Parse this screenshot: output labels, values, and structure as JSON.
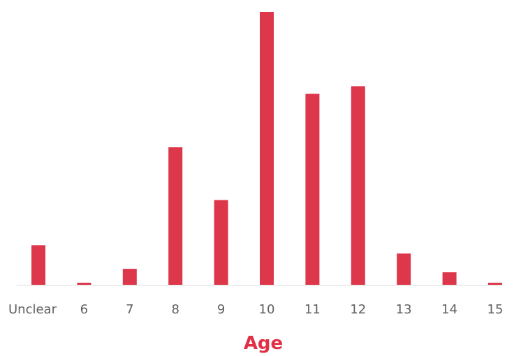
{
  "chart_data": {
    "type": "bar",
    "title": "",
    "xlabel": "Age",
    "ylabel": "",
    "categories": [
      "Unclear",
      "6",
      "7",
      "8",
      "9",
      "10",
      "11",
      "12",
      "13",
      "14",
      "15"
    ],
    "values": [
      57,
      3,
      23,
      198,
      122,
      393,
      275,
      286,
      45,
      18,
      3
    ],
    "ylim": [
      0,
      395
    ],
    "grid": false,
    "legend": "none",
    "colors": {
      "bar": "#dc374b",
      "axis": "#dddddd",
      "tick_text": "#5f5f5f",
      "xlabel_text": "#e12f45"
    }
  }
}
